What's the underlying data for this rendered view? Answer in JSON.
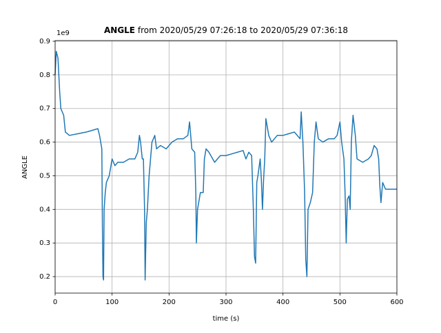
{
  "chart_data": {
    "type": "line",
    "title_bold": "ANGLE",
    "title": "from 2020/05/29 07:26:18 to 2020/05/29 07:36:18",
    "xlabel": "time (s)",
    "ylabel": "ANGLE",
    "offset_label": "1e9",
    "xlim": [
      0,
      600
    ],
    "xticks": [
      0,
      100,
      200,
      300,
      400,
      500,
      600
    ],
    "ylim": [
      0.151,
      0.902
    ],
    "yticks": [
      0.2,
      0.3,
      0.4,
      0.5,
      0.6,
      0.7,
      0.8,
      0.9
    ],
    "grid": true,
    "series": [
      {
        "color": "#1f77b4",
        "x": [
          0,
          2,
          5,
          8,
          10,
          15,
          18,
          25,
          40,
          55,
          65,
          75,
          78,
          80,
          82,
          83,
          84,
          85,
          86,
          88,
          90,
          95,
          100,
          105,
          110,
          120,
          130,
          140,
          145,
          148,
          150,
          153,
          155,
          157,
          158,
          160,
          162,
          165,
          170,
          175,
          178,
          185,
          195,
          205,
          215,
          225,
          233,
          236,
          240,
          245,
          247,
          248,
          250,
          255,
          260,
          262,
          265,
          270,
          280,
          290,
          300,
          310,
          320,
          330,
          335,
          340,
          345,
          348,
          350,
          352,
          354,
          356,
          360,
          362,
          364,
          366,
          368,
          370,
          375,
          380,
          390,
          400,
          410,
          420,
          430,
          432,
          435,
          438,
          440,
          442,
          444,
          448,
          452,
          455,
          458,
          462,
          470,
          480,
          490,
          495,
          500,
          503,
          507,
          509,
          511,
          513,
          516,
          518,
          520,
          523,
          527,
          530,
          540,
          550,
          555,
          560,
          565,
          568,
          570,
          572,
          575,
          580,
          600
        ],
        "values": [
          0.8,
          0.87,
          0.85,
          0.75,
          0.7,
          0.68,
          0.63,
          0.62,
          0.625,
          0.63,
          0.635,
          0.64,
          0.62,
          0.6,
          0.58,
          0.35,
          0.2,
          0.19,
          0.4,
          0.45,
          0.48,
          0.5,
          0.55,
          0.53,
          0.54,
          0.54,
          0.55,
          0.55,
          0.57,
          0.62,
          0.6,
          0.55,
          0.55,
          0.4,
          0.19,
          0.36,
          0.4,
          0.5,
          0.6,
          0.62,
          0.58,
          0.59,
          0.58,
          0.6,
          0.61,
          0.61,
          0.62,
          0.66,
          0.58,
          0.57,
          0.45,
          0.3,
          0.4,
          0.45,
          0.45,
          0.55,
          0.58,
          0.57,
          0.54,
          0.56,
          0.56,
          0.565,
          0.57,
          0.575,
          0.55,
          0.57,
          0.56,
          0.4,
          0.26,
          0.24,
          0.48,
          0.5,
          0.55,
          0.49,
          0.4,
          0.49,
          0.55,
          0.67,
          0.62,
          0.6,
          0.62,
          0.62,
          0.625,
          0.63,
          0.61,
          0.69,
          0.6,
          0.45,
          0.25,
          0.2,
          0.4,
          0.42,
          0.45,
          0.6,
          0.66,
          0.61,
          0.6,
          0.61,
          0.61,
          0.62,
          0.66,
          0.6,
          0.55,
          0.45,
          0.3,
          0.43,
          0.44,
          0.4,
          0.6,
          0.68,
          0.62,
          0.55,
          0.54,
          0.55,
          0.56,
          0.59,
          0.58,
          0.55,
          0.47,
          0.42,
          0.48,
          0.46,
          0.46
        ]
      }
    ]
  }
}
